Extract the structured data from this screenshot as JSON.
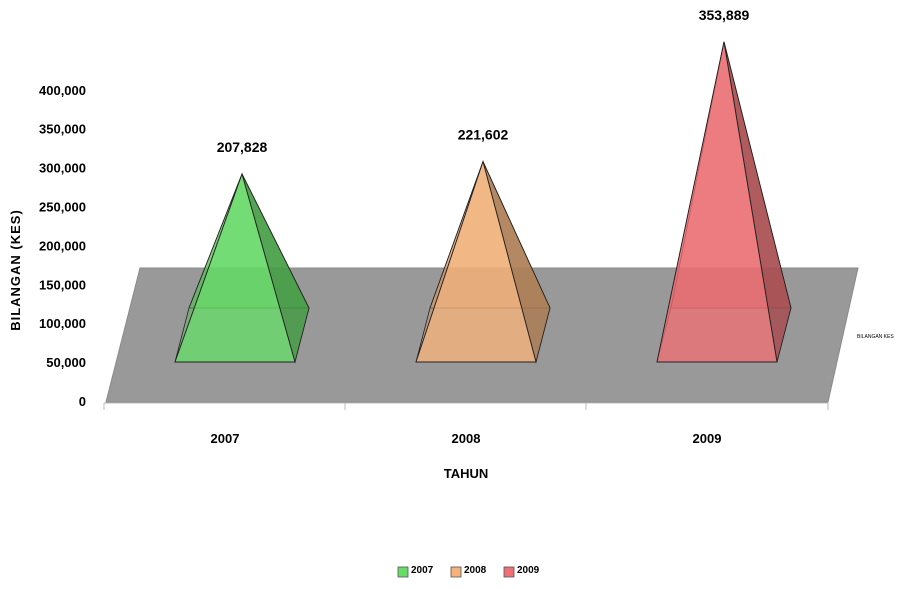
{
  "chart_data": {
    "type": "bar",
    "shape": "3d-pyramid",
    "categories": [
      "2007",
      "2008",
      "2009"
    ],
    "values": [
      207828,
      221602,
      353889
    ],
    "data_labels": [
      "207,828",
      "221,602",
      "353,889"
    ],
    "y_ticks": [
      "0",
      "50,000",
      "100,000",
      "150,000",
      "200,000",
      "250,000",
      "300,000",
      "350,000",
      "400,000"
    ],
    "ylim": [
      0,
      400000
    ],
    "xlabel": "TAHUN",
    "ylabel": "BILANGAN (KES)",
    "depth_axis_label": "BILANGAN KES",
    "legend": {
      "placement": "bottom",
      "entries": [
        {
          "name": "2007",
          "color": "#66dd66"
        },
        {
          "name": "2008",
          "color": "#f5b27a"
        },
        {
          "name": "2009",
          "color": "#ee6f74"
        }
      ]
    },
    "colors": {
      "2007": "#66dd66",
      "2008": "#f5b27a",
      "2009": "#ee6f74",
      "floor": "#999999"
    },
    "grid": false
  }
}
